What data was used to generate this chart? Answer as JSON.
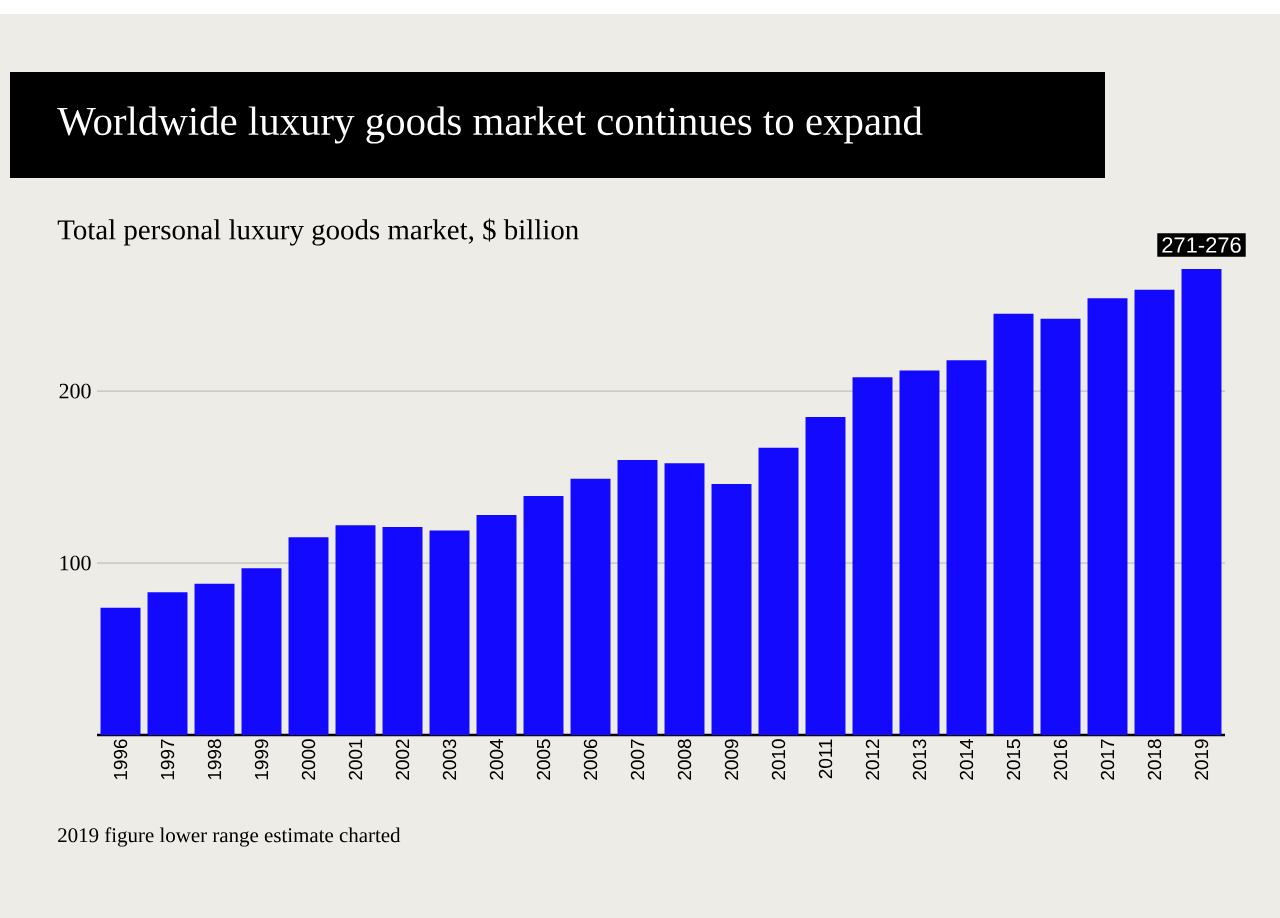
{
  "chart_data": {
    "type": "bar",
    "title": "Worldwide luxury goods market continues to expand",
    "subtitle": "Total personal luxury goods market, $ billion",
    "categories": [
      "1996",
      "1997",
      "1998",
      "1999",
      "2000",
      "2001",
      "2002",
      "2003",
      "2004",
      "2005",
      "2006",
      "2007",
      "2008",
      "2009",
      "2010",
      "2011",
      "2012",
      "2013",
      "2014",
      "2015",
      "2016",
      "2017",
      "2018",
      "2019"
    ],
    "values": [
      74,
      83,
      88,
      97,
      115,
      122,
      121,
      119,
      128,
      139,
      149,
      160,
      158,
      146,
      167,
      185,
      208,
      212,
      218,
      245,
      242,
      254,
      259,
      271
    ],
    "value_labels": [
      null,
      null,
      null,
      null,
      null,
      null,
      null,
      null,
      null,
      null,
      null,
      null,
      null,
      null,
      null,
      null,
      null,
      null,
      null,
      null,
      null,
      null,
      null,
      "271-276"
    ],
    "color": "#1409ff",
    "ylim": [
      0,
      271
    ],
    "yticks": [
      100,
      200
    ],
    "grid": "y",
    "annotations": [
      "2019 figure lower range estimate charted"
    ]
  }
}
